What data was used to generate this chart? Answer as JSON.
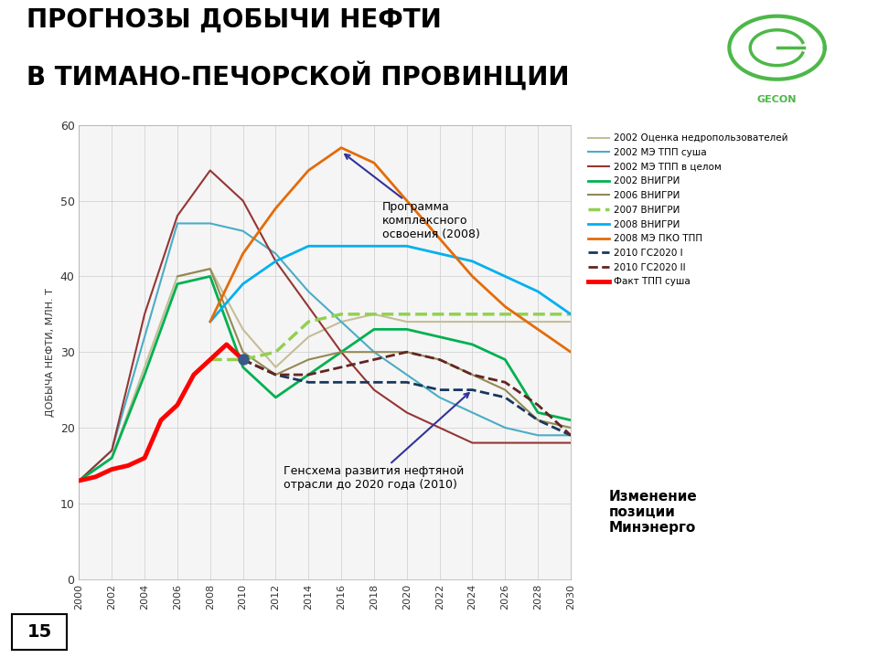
{
  "title_line1": "ПРОГНОЗЫ ДОБЫЧИ НЕФТИ",
  "title_line2": "В ТИМАНО-ПЕЧОРСКОЙ ПРОВИНЦИИ",
  "ylabel": "ДОБЫЧА НЕФТИ, МЛН. Т",
  "ylim": [
    0,
    60
  ],
  "yticks": [
    0,
    10,
    20,
    30,
    40,
    50,
    60
  ],
  "xlim": [
    2000,
    2030
  ],
  "xticks": [
    2000,
    2002,
    2004,
    2006,
    2008,
    2010,
    2012,
    2014,
    2016,
    2018,
    2020,
    2022,
    2024,
    2026,
    2028,
    2030
  ],
  "note_text": "Изменение\nпозиции\nМинэнерго",
  "page_number": "15",
  "bg_color": "#f5f5f5",
  "series": [
    {
      "name": "2002 Оценка недропользователей",
      "color": "#c4bd97",
      "linestyle": "-",
      "linewidth": 1.5,
      "x": [
        2000,
        2002,
        2004,
        2006,
        2008,
        2010,
        2012,
        2014,
        2016,
        2018,
        2020,
        2022,
        2024,
        2026,
        2028,
        2030
      ],
      "y": [
        13,
        16,
        28,
        40,
        41,
        33,
        28,
        32,
        34,
        35,
        34,
        34,
        34,
        34,
        34,
        34
      ]
    },
    {
      "name": "2002 МЭ ТПП суша",
      "color": "#4bacc6",
      "linestyle": "-",
      "linewidth": 1.5,
      "x": [
        2000,
        2002,
        2004,
        2006,
        2008,
        2010,
        2012,
        2014,
        2016,
        2018,
        2020,
        2022,
        2024,
        2026,
        2028,
        2030
      ],
      "y": [
        13,
        17,
        32,
        47,
        47,
        46,
        43,
        38,
        34,
        30,
        27,
        24,
        22,
        20,
        19,
        19
      ]
    },
    {
      "name": "2002 МЭ ТПП в целом",
      "color": "#943634",
      "linestyle": "-",
      "linewidth": 1.5,
      "x": [
        2000,
        2002,
        2004,
        2006,
        2008,
        2010,
        2012,
        2014,
        2016,
        2018,
        2020,
        2022,
        2024,
        2026,
        2028,
        2030
      ],
      "y": [
        13,
        17,
        35,
        48,
        54,
        50,
        42,
        36,
        30,
        25,
        22,
        20,
        18,
        18,
        18,
        18
      ]
    },
    {
      "name": "2002 ВНИГРИ",
      "color": "#00b050",
      "linestyle": "-",
      "linewidth": 2.0,
      "x": [
        2000,
        2002,
        2004,
        2006,
        2008,
        2010,
        2012,
        2014,
        2016,
        2018,
        2020,
        2022,
        2024,
        2026,
        2028,
        2030
      ],
      "y": [
        13,
        16,
        27,
        39,
        40,
        28,
        24,
        27,
        30,
        33,
        33,
        32,
        31,
        29,
        22,
        21
      ]
    },
    {
      "name": "2006 ВНИГРИ",
      "color": "#938953",
      "linestyle": "-",
      "linewidth": 1.5,
      "x": [
        2006,
        2008,
        2010,
        2012,
        2014,
        2016,
        2018,
        2020,
        2022,
        2024,
        2026,
        2028,
        2030
      ],
      "y": [
        40,
        41,
        30,
        27,
        29,
        30,
        30,
        30,
        29,
        27,
        25,
        21,
        20
      ]
    },
    {
      "name": "2007 ВНИГРИ",
      "color": "#92d050",
      "linestyle": "--",
      "linewidth": 2.5,
      "x": [
        2008,
        2010,
        2012,
        2014,
        2016,
        2018,
        2020,
        2022,
        2024,
        2026,
        2028,
        2030
      ],
      "y": [
        29,
        29,
        30,
        34,
        35,
        35,
        35,
        35,
        35,
        35,
        35,
        35
      ]
    },
    {
      "name": "2008 ВНИГРИ",
      "color": "#00b0f0",
      "linestyle": "-",
      "linewidth": 2.0,
      "x": [
        2008,
        2010,
        2012,
        2014,
        2016,
        2018,
        2020,
        2022,
        2024,
        2026,
        2028,
        2030
      ],
      "y": [
        34,
        39,
        42,
        44,
        44,
        44,
        44,
        43,
        42,
        40,
        38,
        35
      ]
    },
    {
      "name": "2008 МЭ ПКО ТПП",
      "color": "#e36c09",
      "linestyle": "-",
      "linewidth": 2.0,
      "x": [
        2008,
        2010,
        2012,
        2014,
        2016,
        2018,
        2020,
        2022,
        2024,
        2026,
        2028,
        2030
      ],
      "y": [
        34,
        43,
        49,
        54,
        57,
        55,
        50,
        45,
        40,
        36,
        33,
        30
      ]
    },
    {
      "name": "2010 ГС2020 I",
      "color": "#17375e",
      "linestyle": "--",
      "linewidth": 2.0,
      "x": [
        2010,
        2012,
        2014,
        2016,
        2018,
        2020,
        2022,
        2024,
        2026,
        2028,
        2030
      ],
      "y": [
        29,
        27,
        26,
        26,
        26,
        26,
        25,
        25,
        24,
        21,
        19
      ]
    },
    {
      "name": "2010 ГС2020 II",
      "color": "#632523",
      "linestyle": "--",
      "linewidth": 2.0,
      "x": [
        2010,
        2012,
        2014,
        2016,
        2018,
        2020,
        2022,
        2024,
        2026,
        2028,
        2030
      ],
      "y": [
        29,
        27,
        27,
        28,
        29,
        30,
        29,
        27,
        26,
        23,
        19
      ]
    },
    {
      "name": "Факт ТПП суша",
      "color": "#ff0000",
      "linestyle": "-",
      "linewidth": 3.5,
      "x": [
        2000,
        2001,
        2002,
        2003,
        2004,
        2005,
        2006,
        2007,
        2008,
        2009,
        2010
      ],
      "y": [
        13,
        13.5,
        14.5,
        15,
        16,
        21,
        23,
        27,
        29,
        31,
        29
      ]
    }
  ]
}
